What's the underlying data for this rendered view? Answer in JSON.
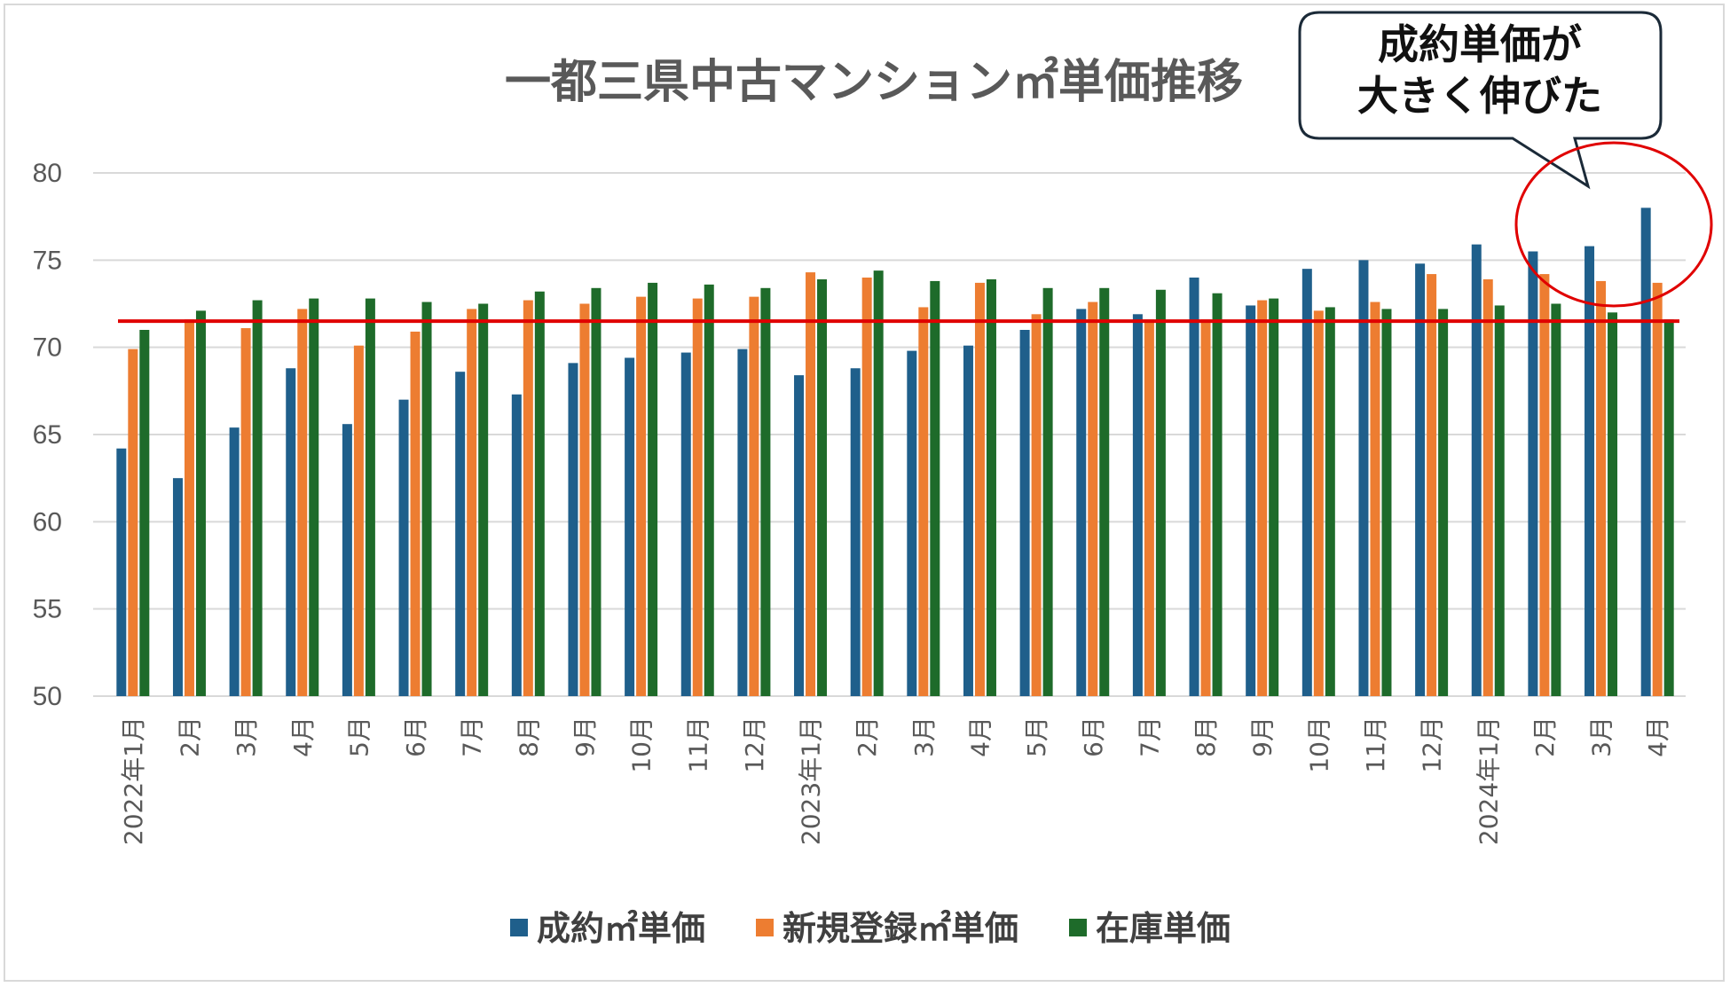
{
  "chart_data": {
    "type": "bar",
    "title": "一都三県中古マンション㎡単価推移",
    "xlabel": "",
    "ylabel": "",
    "ylim": [
      50,
      80
    ],
    "yticks": [
      50,
      55,
      60,
      65,
      70,
      75,
      80
    ],
    "grid": true,
    "legend_position": "bottom",
    "categories": [
      "2022年1月",
      "2月",
      "3月",
      "4月",
      "5月",
      "6月",
      "7月",
      "8月",
      "9月",
      "10月",
      "11月",
      "12月",
      "2023年1月",
      "2月",
      "3月",
      "4月",
      "5月",
      "6月",
      "7月",
      "8月",
      "9月",
      "10月",
      "11月",
      "12月",
      "2024年1月",
      "2月",
      "3月",
      "4月"
    ],
    "series": [
      {
        "name": "成約㎡単価",
        "color": "#1f5f8b",
        "values": [
          64.2,
          62.5,
          65.4,
          68.8,
          65.6,
          67.0,
          68.6,
          67.3,
          69.1,
          69.4,
          69.7,
          69.9,
          68.4,
          68.8,
          69.8,
          70.1,
          71.0,
          72.2,
          71.9,
          74.0,
          72.4,
          74.5,
          75.0,
          74.8,
          75.9,
          75.5,
          75.8,
          78.0
        ]
      },
      {
        "name": "新規登録㎡単価",
        "color": "#ed7d31",
        "values": [
          69.9,
          71.6,
          71.1,
          72.2,
          70.1,
          70.9,
          72.2,
          72.7,
          72.5,
          72.9,
          72.8,
          72.9,
          74.3,
          74.0,
          72.3,
          73.7,
          71.9,
          72.6,
          71.6,
          71.6,
          72.7,
          72.1,
          72.6,
          74.2,
          73.9,
          74.2,
          73.8,
          73.7
        ]
      },
      {
        "name": "在庫単価",
        "color": "#1e6b2a",
        "values": [
          71.0,
          72.1,
          72.7,
          72.8,
          72.8,
          72.6,
          72.5,
          73.2,
          73.4,
          73.7,
          73.6,
          73.4,
          73.9,
          74.4,
          73.8,
          73.9,
          73.4,
          73.4,
          73.3,
          73.1,
          72.8,
          72.3,
          72.2,
          72.2,
          72.4,
          72.5,
          72.0,
          71.6
        ]
      }
    ],
    "reference_line": {
      "value": 71.5,
      "color": "#e00000"
    },
    "annotations": [
      {
        "type": "callout",
        "lines": [
          "成約単価が",
          "大きく伸びた"
        ]
      },
      {
        "type": "circle",
        "color": "#e00000"
      }
    ]
  }
}
